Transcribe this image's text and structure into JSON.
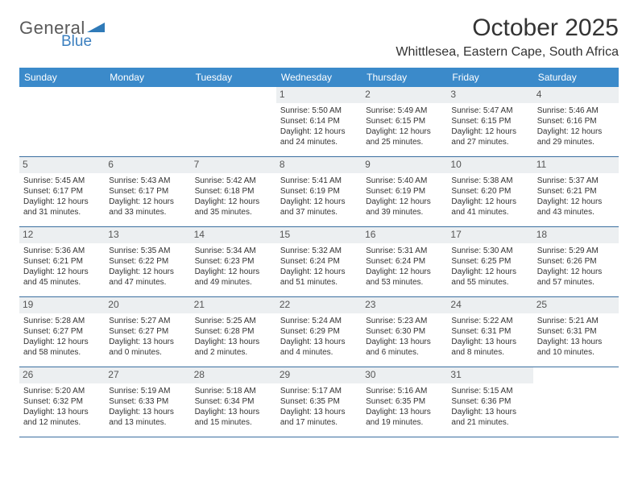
{
  "brand": {
    "word1": "General",
    "word2": "Blue"
  },
  "title": "October 2025",
  "location": "Whittlesea, Eastern Cape, South Africa",
  "colors": {
    "header_bg": "#3b8aca",
    "header_fg": "#ffffff",
    "rule": "#3b6fa0",
    "daynum_bg": "#eceff1"
  },
  "day_names": [
    "Sunday",
    "Monday",
    "Tuesday",
    "Wednesday",
    "Thursday",
    "Friday",
    "Saturday"
  ],
  "weeks": [
    [
      {
        "blank": true
      },
      {
        "blank": true
      },
      {
        "blank": true
      },
      {
        "n": "1",
        "sunrise": "5:50 AM",
        "sunset": "6:14 PM",
        "daylight": "12 hours and 24 minutes."
      },
      {
        "n": "2",
        "sunrise": "5:49 AM",
        "sunset": "6:15 PM",
        "daylight": "12 hours and 25 minutes."
      },
      {
        "n": "3",
        "sunrise": "5:47 AM",
        "sunset": "6:15 PM",
        "daylight": "12 hours and 27 minutes."
      },
      {
        "n": "4",
        "sunrise": "5:46 AM",
        "sunset": "6:16 PM",
        "daylight": "12 hours and 29 minutes."
      }
    ],
    [
      {
        "n": "5",
        "sunrise": "5:45 AM",
        "sunset": "6:17 PM",
        "daylight": "12 hours and 31 minutes."
      },
      {
        "n": "6",
        "sunrise": "5:43 AM",
        "sunset": "6:17 PM",
        "daylight": "12 hours and 33 minutes."
      },
      {
        "n": "7",
        "sunrise": "5:42 AM",
        "sunset": "6:18 PM",
        "daylight": "12 hours and 35 minutes."
      },
      {
        "n": "8",
        "sunrise": "5:41 AM",
        "sunset": "6:19 PM",
        "daylight": "12 hours and 37 minutes."
      },
      {
        "n": "9",
        "sunrise": "5:40 AM",
        "sunset": "6:19 PM",
        "daylight": "12 hours and 39 minutes."
      },
      {
        "n": "10",
        "sunrise": "5:38 AM",
        "sunset": "6:20 PM",
        "daylight": "12 hours and 41 minutes."
      },
      {
        "n": "11",
        "sunrise": "5:37 AM",
        "sunset": "6:21 PM",
        "daylight": "12 hours and 43 minutes."
      }
    ],
    [
      {
        "n": "12",
        "sunrise": "5:36 AM",
        "sunset": "6:21 PM",
        "daylight": "12 hours and 45 minutes."
      },
      {
        "n": "13",
        "sunrise": "5:35 AM",
        "sunset": "6:22 PM",
        "daylight": "12 hours and 47 minutes."
      },
      {
        "n": "14",
        "sunrise": "5:34 AM",
        "sunset": "6:23 PM",
        "daylight": "12 hours and 49 minutes."
      },
      {
        "n": "15",
        "sunrise": "5:32 AM",
        "sunset": "6:24 PM",
        "daylight": "12 hours and 51 minutes."
      },
      {
        "n": "16",
        "sunrise": "5:31 AM",
        "sunset": "6:24 PM",
        "daylight": "12 hours and 53 minutes."
      },
      {
        "n": "17",
        "sunrise": "5:30 AM",
        "sunset": "6:25 PM",
        "daylight": "12 hours and 55 minutes."
      },
      {
        "n": "18",
        "sunrise": "5:29 AM",
        "sunset": "6:26 PM",
        "daylight": "12 hours and 57 minutes."
      }
    ],
    [
      {
        "n": "19",
        "sunrise": "5:28 AM",
        "sunset": "6:27 PM",
        "daylight": "12 hours and 58 minutes."
      },
      {
        "n": "20",
        "sunrise": "5:27 AM",
        "sunset": "6:27 PM",
        "daylight": "13 hours and 0 minutes."
      },
      {
        "n": "21",
        "sunrise": "5:25 AM",
        "sunset": "6:28 PM",
        "daylight": "13 hours and 2 minutes."
      },
      {
        "n": "22",
        "sunrise": "5:24 AM",
        "sunset": "6:29 PM",
        "daylight": "13 hours and 4 minutes."
      },
      {
        "n": "23",
        "sunrise": "5:23 AM",
        "sunset": "6:30 PM",
        "daylight": "13 hours and 6 minutes."
      },
      {
        "n": "24",
        "sunrise": "5:22 AM",
        "sunset": "6:31 PM",
        "daylight": "13 hours and 8 minutes."
      },
      {
        "n": "25",
        "sunrise": "5:21 AM",
        "sunset": "6:31 PM",
        "daylight": "13 hours and 10 minutes."
      }
    ],
    [
      {
        "n": "26",
        "sunrise": "5:20 AM",
        "sunset": "6:32 PM",
        "daylight": "13 hours and 12 minutes."
      },
      {
        "n": "27",
        "sunrise": "5:19 AM",
        "sunset": "6:33 PM",
        "daylight": "13 hours and 13 minutes."
      },
      {
        "n": "28",
        "sunrise": "5:18 AM",
        "sunset": "6:34 PM",
        "daylight": "13 hours and 15 minutes."
      },
      {
        "n": "29",
        "sunrise": "5:17 AM",
        "sunset": "6:35 PM",
        "daylight": "13 hours and 17 minutes."
      },
      {
        "n": "30",
        "sunrise": "5:16 AM",
        "sunset": "6:35 PM",
        "daylight": "13 hours and 19 minutes."
      },
      {
        "n": "31",
        "sunrise": "5:15 AM",
        "sunset": "6:36 PM",
        "daylight": "13 hours and 21 minutes."
      },
      {
        "blank": true
      }
    ]
  ],
  "labels": {
    "sunrise": "Sunrise: ",
    "sunset": "Sunset: ",
    "daylight": "Daylight: "
  }
}
